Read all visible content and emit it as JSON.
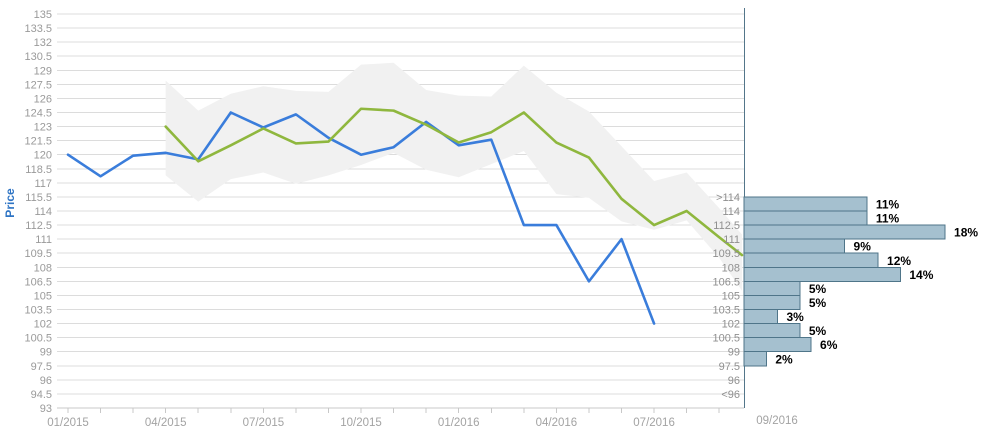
{
  "chart_data": [
    {
      "type": "line",
      "title": "",
      "ylabel": "Price",
      "ylim": [
        93,
        135
      ],
      "ytick_step": 1.5,
      "ytick_labels": [
        "135",
        "133.5",
        "132",
        "130.5",
        "129",
        "127.5",
        "126",
        "124.5",
        "123",
        "121.5",
        "120",
        "118.5",
        "117",
        "115.5",
        "114",
        "112.5",
        "111",
        "109.5",
        "108",
        "106.5",
        "105",
        "103.5",
        "102",
        "100.5",
        "99",
        "97.5",
        "96",
        "94.5",
        "93"
      ],
      "xtick_labels": [
        "01/2015",
        "04/2015",
        "07/2015",
        "10/2015",
        "01/2016",
        "04/2016",
        "07/2016"
      ],
      "months_between_labels": 3,
      "grid": true,
      "colors": {
        "actual_line": "#3a7ddb",
        "estimate_line": "#8fb73e",
        "band_fill": "#f1f1f1",
        "gridline": "#dcdcdc",
        "axis_line": "#c8c8c8",
        "ytick_text": "#9a9a9a",
        "xtick_text": "#a3a3a3",
        "ylabel_text": "#2e74c4"
      },
      "series": [
        {
          "name": "actual-price",
          "color": "#3a7ddb",
          "x": [
            0,
            1,
            2,
            3,
            4,
            5,
            6,
            7,
            8,
            9,
            10,
            11,
            12,
            13,
            14,
            15,
            16,
            17,
            18
          ],
          "values": [
            120.0,
            117.7,
            119.9,
            120.2,
            119.5,
            124.5,
            122.9,
            124.3,
            121.8,
            120.0,
            120.8,
            123.5,
            121.0,
            121.6,
            112.5,
            112.5,
            106.5,
            111.0,
            102.0
          ]
        },
        {
          "name": "estimate-price",
          "color": "#8fb73e",
          "x": [
            3,
            4,
            5,
            6,
            7,
            8,
            9,
            10,
            11,
            12,
            13,
            14,
            15,
            16,
            17,
            18,
            19,
            20,
            20.7
          ],
          "values": [
            123.0,
            119.3,
            121.0,
            122.8,
            121.2,
            121.4,
            124.9,
            124.7,
            123.2,
            121.3,
            122.4,
            124.5,
            121.3,
            119.7,
            115.3,
            112.5,
            114.0,
            111.2,
            109.3
          ]
        }
      ],
      "band": {
        "name": "confidence-band",
        "color": "#f1f1f1",
        "x": [
          3,
          4,
          5,
          6,
          7,
          8,
          9,
          10,
          11,
          12,
          13,
          14,
          15,
          16,
          17,
          18,
          19,
          20,
          20.7
        ],
        "upper": [
          127.9,
          124.7,
          126.5,
          127.3,
          126.8,
          126.7,
          129.6,
          129.8,
          126.9,
          126.3,
          126.2,
          129.5,
          126.6,
          124.6,
          120.9,
          117.2,
          118.1,
          114.3,
          111.5
        ],
        "lower": [
          117.8,
          115.0,
          117.4,
          118.1,
          116.9,
          117.8,
          118.9,
          120.2,
          118.4,
          117.6,
          119.0,
          120.4,
          115.8,
          115.4,
          112.9,
          112.0,
          113.0,
          109.0,
          105.5
        ]
      }
    },
    {
      "type": "bar",
      "orientation": "horizontal",
      "xlabel": "09/2016",
      "unit": "%",
      "categories": [
        ">114",
        "114",
        "112.5",
        "111",
        "109.5",
        "108",
        "106.5",
        "105",
        "103.5",
        "102",
        "100.5",
        "99",
        "97.5",
        "96",
        "<96"
      ],
      "values": [
        11,
        11,
        18,
        9,
        12,
        14,
        5,
        5,
        3,
        5,
        6,
        2,
        0,
        0,
        0
      ],
      "value_labels": [
        "11%",
        "11%",
        "18%",
        "9%",
        "12%",
        "14%",
        "5%",
        "5%",
        "3%",
        "5%",
        "6%",
        "2%",
        "",
        "",
        ""
      ],
      "band_top_value": 115.5,
      "band_step": 1.5,
      "colors": {
        "bar_fill": "#a5c0cf",
        "bar_border": "#4f7589",
        "panel_border": "#53768a",
        "category_text": "#8f8f8f",
        "value_text": "#000000"
      }
    }
  ]
}
